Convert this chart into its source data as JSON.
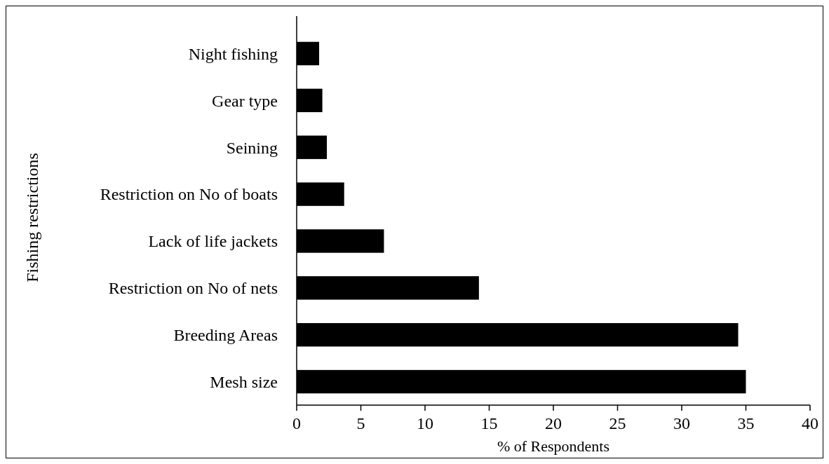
{
  "chart_data": {
    "type": "bar",
    "orientation": "horizontal",
    "xlabel": "% of Respondents",
    "ylabel": "Fishing restrictions",
    "categories": [
      "Night fishing",
      "Gear type",
      "Seining",
      "Restriction on No of boats",
      "Lack of life jackets",
      "Restriction on No of nets",
      "Breeding Areas",
      "Mesh size"
    ],
    "values": [
      1.75,
      2.0,
      2.35,
      3.7,
      6.8,
      14.2,
      34.4,
      35.0
    ],
    "color": "#000000",
    "xlim": [
      0,
      40
    ],
    "xticks": [
      0,
      5,
      10,
      15,
      20,
      25,
      30,
      35,
      40
    ],
    "grid": false
  }
}
